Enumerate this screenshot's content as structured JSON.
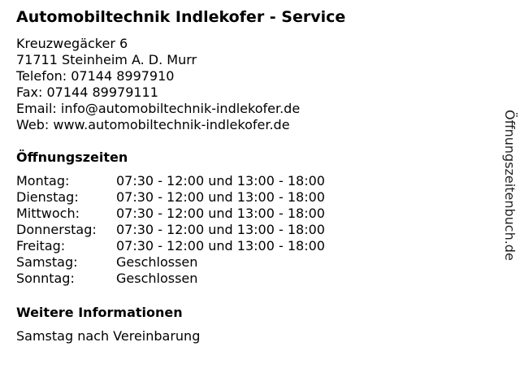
{
  "title": "Automobiltechnik Indlekofer - Service",
  "address": {
    "street": "Kreuzwegäcker 6",
    "city": "71711 Steinheim A. D. Murr",
    "phone": "Telefon: 07144 8997910",
    "fax": "Fax: 07144 89979111",
    "email": "Email: info@automobiltechnik-indlekofer.de",
    "web": "Web: www.automobiltechnik-indlekofer.de"
  },
  "hours_heading": "Öffnungszeiten",
  "hours": [
    {
      "day": "Montag:",
      "time": "07:30 - 12:00 und 13:00 - 18:00"
    },
    {
      "day": "Dienstag:",
      "time": "07:30 - 12:00 und 13:00 - 18:00"
    },
    {
      "day": "Mittwoch:",
      "time": "07:30 - 12:00 und 13:00 - 18:00"
    },
    {
      "day": "Donnerstag:",
      "time": "07:30 - 12:00 und 13:00 - 18:00"
    },
    {
      "day": "Freitag:",
      "time": "07:30 - 12:00 und 13:00 - 18:00"
    },
    {
      "day": "Samstag:",
      "time": "Geschlossen"
    },
    {
      "day": "Sonntag:",
      "time": "Geschlossen"
    }
  ],
  "info_heading": "Weitere Informationen",
  "info_text": "Samstag nach Vereinbarung",
  "side_brand": "Öffnungszeitenbuch.de"
}
